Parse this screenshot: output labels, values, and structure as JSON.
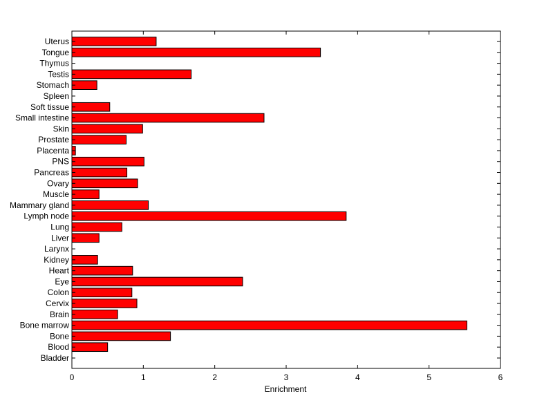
{
  "chart_data": {
    "type": "bar",
    "orientation": "horizontal",
    "title": "",
    "xlabel": "Enrichment",
    "ylabel": "",
    "xlim": [
      0,
      6
    ],
    "xticks": [
      "0",
      "1",
      "2",
      "3",
      "4",
      "5",
      "6"
    ],
    "grid": false,
    "legend": "none",
    "bar_color": "#ff0000",
    "bar_edge_color": "#000000",
    "categories": [
      "Bladder",
      "Blood",
      "Bone",
      "Bone marrow",
      "Brain",
      "Cervix",
      "Colon",
      "Eye",
      "Heart",
      "Kidney",
      "Larynx",
      "Liver",
      "Lung",
      "Lymph node",
      "Mammary gland",
      "Muscle",
      "Ovary",
      "Pancreas",
      "PNS",
      "Placenta",
      "Prostate",
      "Skin",
      "Small intestine",
      "Soft tissue",
      "Spleen",
      "Stomach",
      "Testis",
      "Thymus",
      "Tongue",
      "Uterus"
    ],
    "values": [
      0,
      0.5,
      1.38,
      5.53,
      0.64,
      0.91,
      0.84,
      2.39,
      0.85,
      0.36,
      0,
      0.38,
      0.7,
      3.84,
      1.07,
      0.38,
      0.92,
      0.77,
      1.01,
      0.05,
      0.76,
      0.99,
      2.69,
      0.53,
      0,
      0.35,
      1.67,
      0,
      3.48,
      1.18
    ]
  }
}
